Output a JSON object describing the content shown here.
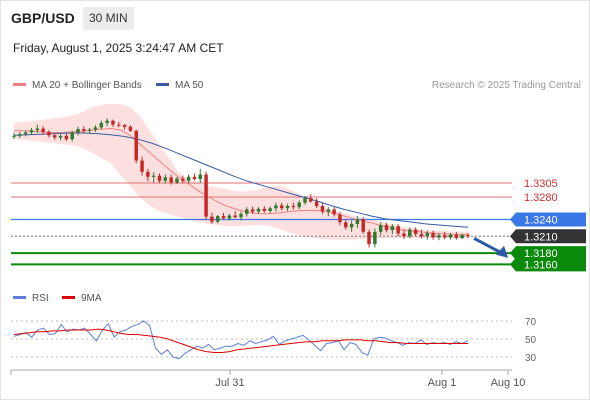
{
  "header": {
    "pair": "GBP/USD",
    "timeframe": "30 MIN",
    "timestamp": "Friday, August 1, 2025 3:24:47 AM CET"
  },
  "legend": {
    "bollinger": {
      "label": "MA 20 + Bollinger Bands",
      "color": "#f08080"
    },
    "ma50": {
      "label": "MA 50",
      "color": "#3a5aa0"
    },
    "credit": "Research © 2025 Trading Central"
  },
  "rsi_legend": {
    "rsi": {
      "label": "RSI",
      "color": "#5b7fd6"
    },
    "ma9": {
      "label": "9MA",
      "color": "#dd0000"
    }
  },
  "chart_data": [
    {
      "type": "candlestick",
      "title": "GBP/USD",
      "ylim": [
        1.3125,
        1.346
      ],
      "levels": [
        {
          "value": 1.3305,
          "label": "1.3305",
          "role": "resistance",
          "color": "#e07070"
        },
        {
          "value": 1.328,
          "label": "1.3280",
          "role": "resistance",
          "color": "#e07070"
        },
        {
          "value": 1.324,
          "label": "1.3240",
          "role": "pivot",
          "color": "#3a78e8"
        },
        {
          "value": 1.321,
          "label": "1.3210",
          "role": "last",
          "color": "#333333"
        },
        {
          "value": 1.318,
          "label": "1.3180",
          "role": "support",
          "color": "#0a8a0a"
        },
        {
          "value": 1.316,
          "label": "1.3160",
          "role": "support",
          "color": "#0a8a0a"
        }
      ],
      "x_ticks": [
        "Jul 31",
        "Aug 1",
        "Aug 10"
      ],
      "up_color": "#2f7a2f",
      "down_color": "#c62828",
      "candles": [
        [
          1.3388,
          1.3394,
          1.3383,
          1.3389
        ],
        [
          1.3389,
          1.3396,
          1.3385,
          1.3392
        ],
        [
          1.3392,
          1.3399,
          1.3388,
          1.3395
        ],
        [
          1.3395,
          1.3403,
          1.3391,
          1.3399
        ],
        [
          1.3399,
          1.3409,
          1.3394,
          1.3402
        ],
        [
          1.3402,
          1.3406,
          1.3391,
          1.3396
        ],
        [
          1.3396,
          1.3399,
          1.3386,
          1.339
        ],
        [
          1.339,
          1.3393,
          1.3382,
          1.3386
        ],
        [
          1.3386,
          1.3392,
          1.3381,
          1.3389
        ],
        [
          1.3389,
          1.3393,
          1.338,
          1.3383
        ],
        [
          1.3383,
          1.3398,
          1.3379,
          1.3395
        ],
        [
          1.3395,
          1.3405,
          1.339,
          1.3401
        ],
        [
          1.3401,
          1.3406,
          1.3393,
          1.3398
        ],
        [
          1.3398,
          1.3403,
          1.3394,
          1.34
        ],
        [
          1.34,
          1.3408,
          1.3396,
          1.3404
        ],
        [
          1.3404,
          1.3416,
          1.34,
          1.3412
        ],
        [
          1.3412,
          1.342,
          1.3406,
          1.3416
        ],
        [
          1.3416,
          1.3418,
          1.3405,
          1.3409
        ],
        [
          1.3409,
          1.3414,
          1.3404,
          1.3408
        ],
        [
          1.3408,
          1.341,
          1.34,
          1.3405
        ],
        [
          1.3405,
          1.3408,
          1.3396,
          1.3398
        ],
        [
          1.3398,
          1.34,
          1.334,
          1.3345
        ],
        [
          1.3345,
          1.3352,
          1.3318,
          1.3325
        ],
        [
          1.3325,
          1.333,
          1.3308,
          1.3316
        ],
        [
          1.3316,
          1.3324,
          1.3306,
          1.3318
        ],
        [
          1.3318,
          1.3322,
          1.3305,
          1.3309
        ],
        [
          1.3309,
          1.332,
          1.3304,
          1.3315
        ],
        [
          1.3315,
          1.332,
          1.3302,
          1.3306
        ],
        [
          1.3306,
          1.3316,
          1.3303,
          1.3313
        ],
        [
          1.3313,
          1.3318,
          1.3305,
          1.3309
        ],
        [
          1.3309,
          1.332,
          1.3304,
          1.3316
        ],
        [
          1.3316,
          1.3322,
          1.3309,
          1.3312
        ],
        [
          1.3312,
          1.333,
          1.3305,
          1.332
        ],
        [
          1.332,
          1.3325,
          1.324,
          1.3245
        ],
        [
          1.3245,
          1.3252,
          1.3232,
          1.3236
        ],
        [
          1.3236,
          1.3248,
          1.3233,
          1.3246
        ],
        [
          1.3246,
          1.3252,
          1.324,
          1.3242
        ],
        [
          1.3242,
          1.325,
          1.3238,
          1.3247
        ],
        [
          1.3247,
          1.3255,
          1.3242,
          1.3244
        ],
        [
          1.3244,
          1.3254,
          1.3238,
          1.325
        ],
        [
          1.325,
          1.3262,
          1.3245,
          1.3258
        ],
        [
          1.3258,
          1.3263,
          1.325,
          1.3254
        ],
        [
          1.3254,
          1.3262,
          1.325,
          1.3259
        ],
        [
          1.3259,
          1.3264,
          1.3252,
          1.3255
        ],
        [
          1.3255,
          1.3263,
          1.3251,
          1.326
        ],
        [
          1.326,
          1.327,
          1.3254,
          1.3265
        ],
        [
          1.3265,
          1.327,
          1.3256,
          1.326
        ],
        [
          1.326,
          1.3268,
          1.3255,
          1.3264
        ],
        [
          1.3264,
          1.327,
          1.3258,
          1.3262
        ],
        [
          1.3262,
          1.3274,
          1.3258,
          1.327
        ],
        [
          1.327,
          1.3282,
          1.3266,
          1.3278
        ],
        [
          1.3278,
          1.3285,
          1.327,
          1.3272
        ],
        [
          1.3272,
          1.3278,
          1.326,
          1.3264
        ],
        [
          1.3264,
          1.327,
          1.325,
          1.3254
        ],
        [
          1.3254,
          1.3262,
          1.3246,
          1.3258
        ],
        [
          1.3258,
          1.3262,
          1.3245,
          1.3249
        ],
        [
          1.3249,
          1.3253,
          1.323,
          1.3235
        ],
        [
          1.3235,
          1.324,
          1.3222,
          1.3226
        ],
        [
          1.3226,
          1.3238,
          1.3218,
          1.3232
        ],
        [
          1.3232,
          1.3246,
          1.3225,
          1.324
        ],
        [
          1.324,
          1.3244,
          1.3215,
          1.3218
        ],
        [
          1.3218,
          1.3222,
          1.319,
          1.3196
        ],
        [
          1.3196,
          1.3224,
          1.319,
          1.3218
        ],
        [
          1.3218,
          1.3235,
          1.3212,
          1.323
        ],
        [
          1.323,
          1.3234,
          1.3217,
          1.3221
        ],
        [
          1.3221,
          1.3232,
          1.3214,
          1.3228
        ],
        [
          1.3228,
          1.3232,
          1.321,
          1.3215
        ],
        [
          1.3215,
          1.3222,
          1.3205,
          1.321
        ],
        [
          1.321,
          1.3226,
          1.3206,
          1.3222
        ],
        [
          1.3222,
          1.3226,
          1.321,
          1.3214
        ],
        [
          1.3214,
          1.3222,
          1.3206,
          1.321
        ],
        [
          1.321,
          1.322,
          1.3204,
          1.3216
        ],
        [
          1.3216,
          1.322,
          1.3204,
          1.3208
        ],
        [
          1.3208,
          1.3215,
          1.3203,
          1.3212
        ],
        [
          1.3212,
          1.3218,
          1.3205,
          1.3208
        ],
        [
          1.3208,
          1.3216,
          1.3204,
          1.3213
        ],
        [
          1.3213,
          1.3218,
          1.3204,
          1.3207
        ],
        [
          1.3207,
          1.3215,
          1.3205,
          1.3212
        ],
        [
          1.3212,
          1.3216,
          1.3207,
          1.321
        ]
      ],
      "ma20": [
        1.3398,
        1.3398,
        1.3397,
        1.3396,
        1.3395,
        1.3395,
        1.3396,
        1.3397,
        1.3399,
        1.3401,
        1.3402,
        1.34,
        1.339,
        1.3375,
        1.336,
        1.3345,
        1.333,
        1.3316,
        1.3304,
        1.3292,
        1.3282,
        1.3272,
        1.3264,
        1.3258,
        1.3254,
        1.3251,
        1.325,
        1.3251,
        1.3253,
        1.3255,
        1.3256,
        1.3256,
        1.3255,
        1.3252,
        1.3247,
        1.3242,
        1.3238,
        1.3234,
        1.3229,
        1.3225,
        1.3222,
        1.322,
        1.3218,
        1.3216,
        1.3215,
        1.3214,
        1.3213,
        1.3213
      ],
      "ma50": [
        1.339,
        1.3391,
        1.3392,
        1.3393,
        1.3394,
        1.3394,
        1.3393,
        1.3391,
        1.3388,
        1.3383,
        1.3376,
        1.3367,
        1.3357,
        1.3347,
        1.3337,
        1.3327,
        1.3317,
        1.3308,
        1.3301,
        1.3294,
        1.3287,
        1.328,
        1.3273,
        1.3265,
        1.3258,
        1.3252,
        1.3246,
        1.3241,
        1.3238,
        1.3235,
        1.3232,
        1.323,
        1.3228,
        1.3226
      ],
      "bb_upper": [
        1.3412,
        1.3414,
        1.3416,
        1.3418,
        1.342,
        1.3422,
        1.3425,
        1.343,
        1.344,
        1.3444,
        1.3446,
        1.3446,
        1.344,
        1.3425,
        1.34,
        1.3375,
        1.335,
        1.3325,
        1.3312,
        1.3305,
        1.33,
        1.3297,
        1.3294,
        1.329,
        1.329,
        1.3292,
        1.3297,
        1.33,
        1.3298,
        1.329,
        1.328,
        1.327,
        1.3262,
        1.3256,
        1.3252,
        1.3248,
        1.3244,
        1.324,
        1.3236,
        1.3232,
        1.3228,
        1.3225,
        1.3222,
        1.3221,
        1.322,
        1.3219,
        1.3218,
        1.3218
      ],
      "bb_lower": [
        1.3384,
        1.3382,
        1.338,
        1.3378,
        1.3376,
        1.3374,
        1.3372,
        1.3368,
        1.336,
        1.335,
        1.334,
        1.332,
        1.33,
        1.328,
        1.3265,
        1.3255,
        1.325,
        1.3245,
        1.324,
        1.3236,
        1.3233,
        1.323,
        1.3228,
        1.3228,
        1.3229,
        1.323,
        1.323,
        1.3226,
        1.322,
        1.3214,
        1.321,
        1.3207,
        1.3205,
        1.3204,
        1.3204,
        1.3204,
        1.3205,
        1.3206,
        1.3206,
        1.3207,
        1.3207,
        1.3207,
        1.3207,
        1.3207,
        1.3207,
        1.3207,
        1.3206,
        1.3206
      ],
      "forecast": {
        "from": 1.321,
        "to": 1.317
      }
    },
    {
      "type": "line",
      "title": "RSI",
      "ylim": [
        20,
        80
      ],
      "y_ticks": [
        30,
        50,
        70
      ],
      "levels": [
        30,
        50,
        70
      ],
      "series": [
        {
          "name": "RSI",
          "color": "#5b7fd6",
          "values": [
            53,
            55,
            57,
            52,
            60,
            62,
            55,
            56,
            66,
            58,
            61,
            60,
            62,
            55,
            48,
            60,
            67,
            52,
            58,
            60,
            64,
            66,
            70,
            65,
            40,
            33,
            38,
            30,
            28,
            34,
            38,
            42,
            40,
            44,
            38,
            40,
            42,
            42,
            45,
            43,
            48,
            45,
            47,
            49,
            53,
            44,
            48,
            50,
            52,
            54,
            49,
            43,
            37,
            45,
            46,
            48,
            38,
            46,
            44,
            35,
            32,
            50,
            52,
            51,
            48,
            46,
            43,
            46,
            45,
            49,
            44,
            46,
            45,
            46,
            44,
            47,
            45,
            48
          ]
        },
        {
          "name": "9MA",
          "color": "#dd0000",
          "values": [
            55,
            56,
            57,
            58,
            58,
            59,
            59,
            60,
            60,
            60,
            60,
            61,
            60,
            58,
            56,
            55,
            55,
            54,
            53,
            52,
            50,
            47,
            44,
            41,
            38,
            36,
            35,
            35,
            36,
            38,
            39,
            40,
            41,
            42,
            43,
            44,
            45,
            46,
            47,
            47,
            48,
            48,
            48,
            49,
            49,
            49,
            48,
            48,
            47,
            46,
            46,
            45,
            45,
            45,
            45,
            45,
            45,
            45,
            45,
            45
          ]
        }
      ],
      "x_ticks": [
        "Jul 31",
        "Aug 1",
        "Aug 10"
      ]
    }
  ]
}
